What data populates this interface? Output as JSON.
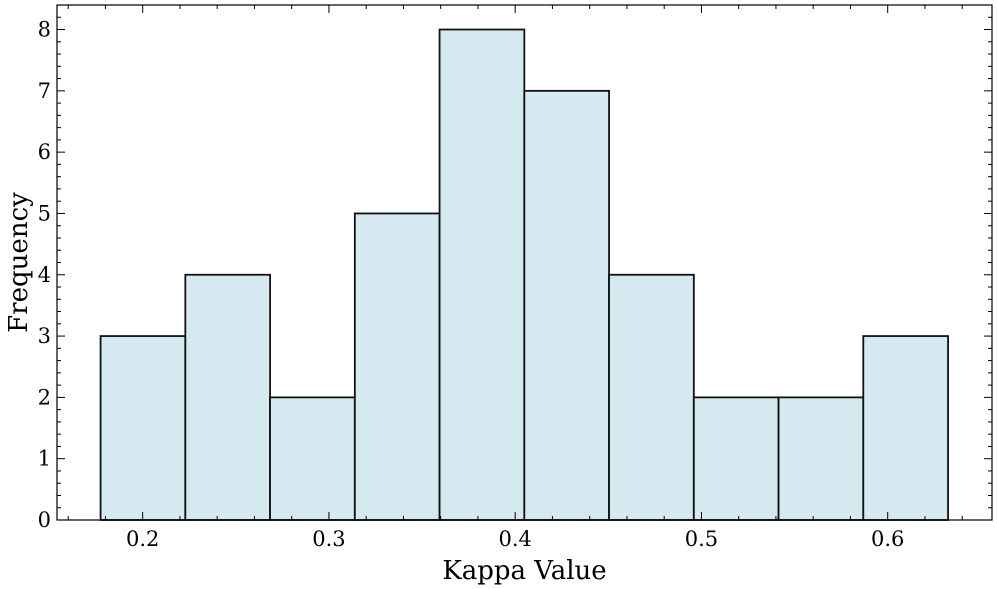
{
  "chart_data": {
    "type": "bar",
    "title": "",
    "xlabel": "Kappa Value",
    "ylabel": "Frequency",
    "bin_edges": [
      0.1774,
      0.2229,
      0.2684,
      0.3139,
      0.3594,
      0.4049,
      0.4504,
      0.4959,
      0.5414,
      0.5869,
      0.6324
    ],
    "values": [
      3,
      4,
      2,
      5,
      8,
      7,
      4,
      2,
      2,
      3
    ],
    "xlim": [
      0.154,
      0.656
    ],
    "ylim": [
      0,
      8.4
    ],
    "x_ticks": [
      0.2,
      0.3,
      0.4,
      0.5,
      0.6
    ],
    "x_tick_labels": [
      "0.2",
      "0.3",
      "0.4",
      "0.5",
      "0.6"
    ],
    "y_ticks": [
      0,
      1,
      2,
      3,
      4,
      5,
      6,
      7,
      8
    ],
    "y_tick_labels": [
      "0",
      "1",
      "2",
      "3",
      "4",
      "5",
      "6",
      "7",
      "8"
    ],
    "bar_color": "#d5eaf0",
    "bar_edge_color": "#111111",
    "grid": false,
    "legend": "none"
  }
}
